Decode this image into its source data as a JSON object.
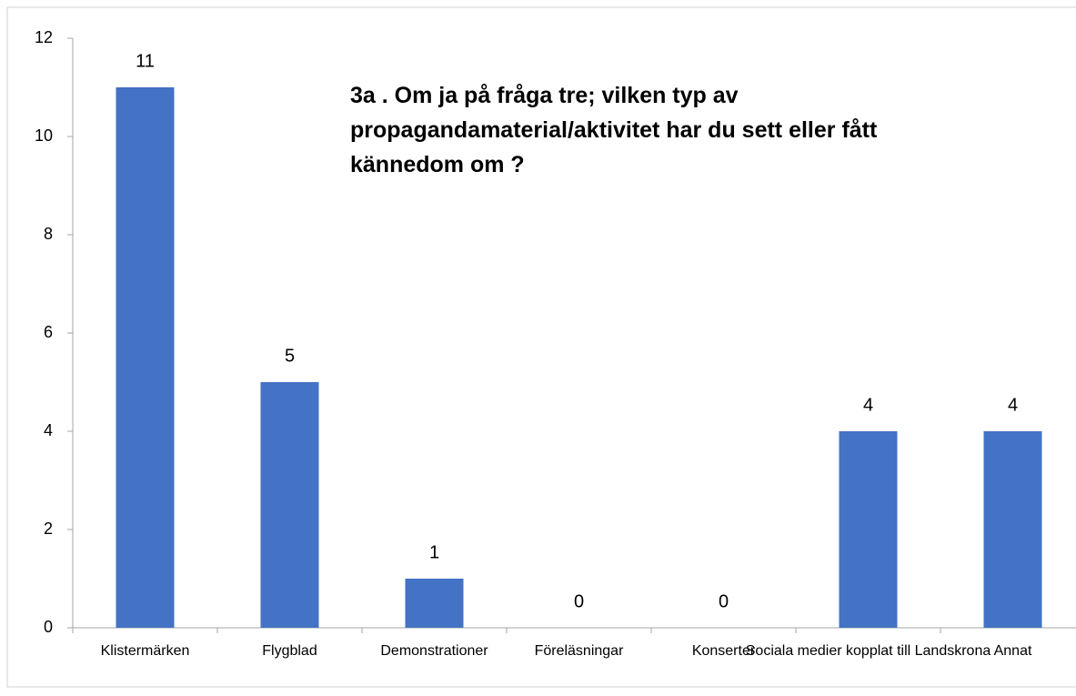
{
  "chart_data": {
    "type": "bar",
    "title": "3a . Om ja på fråga tre; vilken typ av propagandamaterial/aktivitet har du sett eller fått kännedom om ?",
    "categories": [
      "Klistermärken",
      "Flygblad",
      "Demonstrationer",
      "Föreläsningar",
      "Konserter",
      "Sociala medier kopplat till Landskrona",
      "Annat"
    ],
    "values": [
      11,
      5,
      1,
      0,
      0,
      4,
      4
    ],
    "color": "#4472c4",
    "ylim": [
      0,
      12
    ],
    "yticks": [
      0,
      2,
      4,
      6,
      8,
      10,
      12
    ],
    "grid": false
  }
}
